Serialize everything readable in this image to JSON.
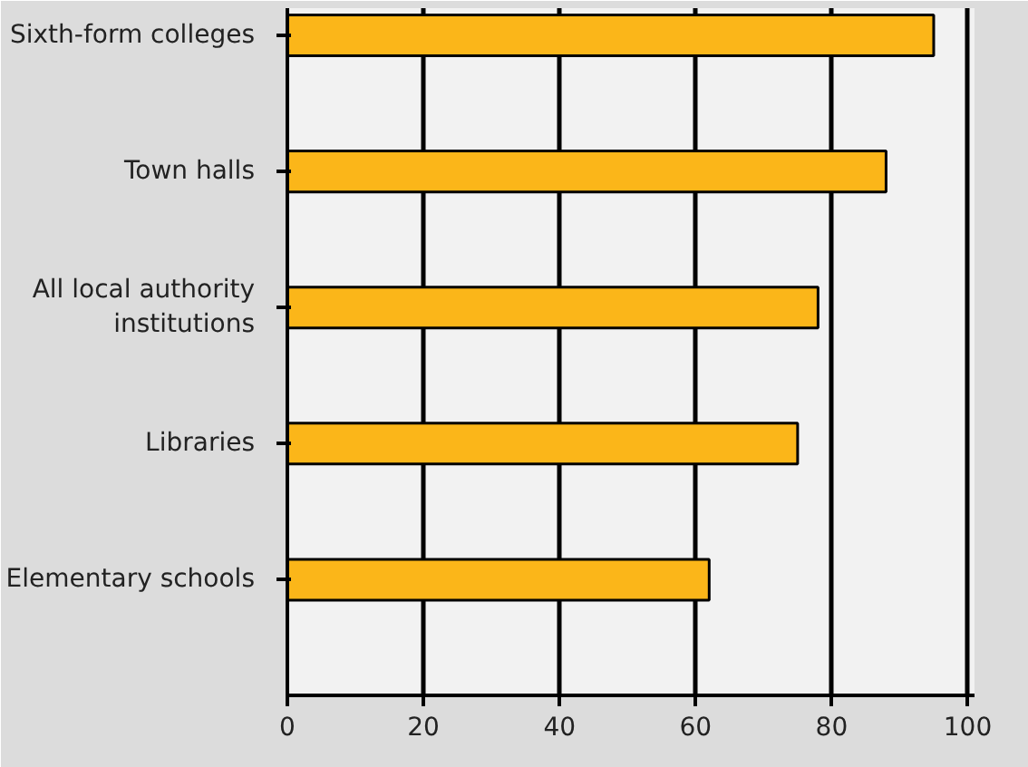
{
  "chart_data": {
    "type": "bar",
    "orientation": "horizontal",
    "categories": [
      "Sixth-form colleges",
      "Town halls",
      "All local authority institutions",
      "Libraries",
      "Elementary schools"
    ],
    "values": [
      95,
      88,
      78,
      75,
      62
    ],
    "color": "#fbb619",
    "xlim": [
      0,
      100
    ],
    "xticks": [
      0,
      20,
      40,
      60,
      80,
      100
    ],
    "grid": "x"
  }
}
